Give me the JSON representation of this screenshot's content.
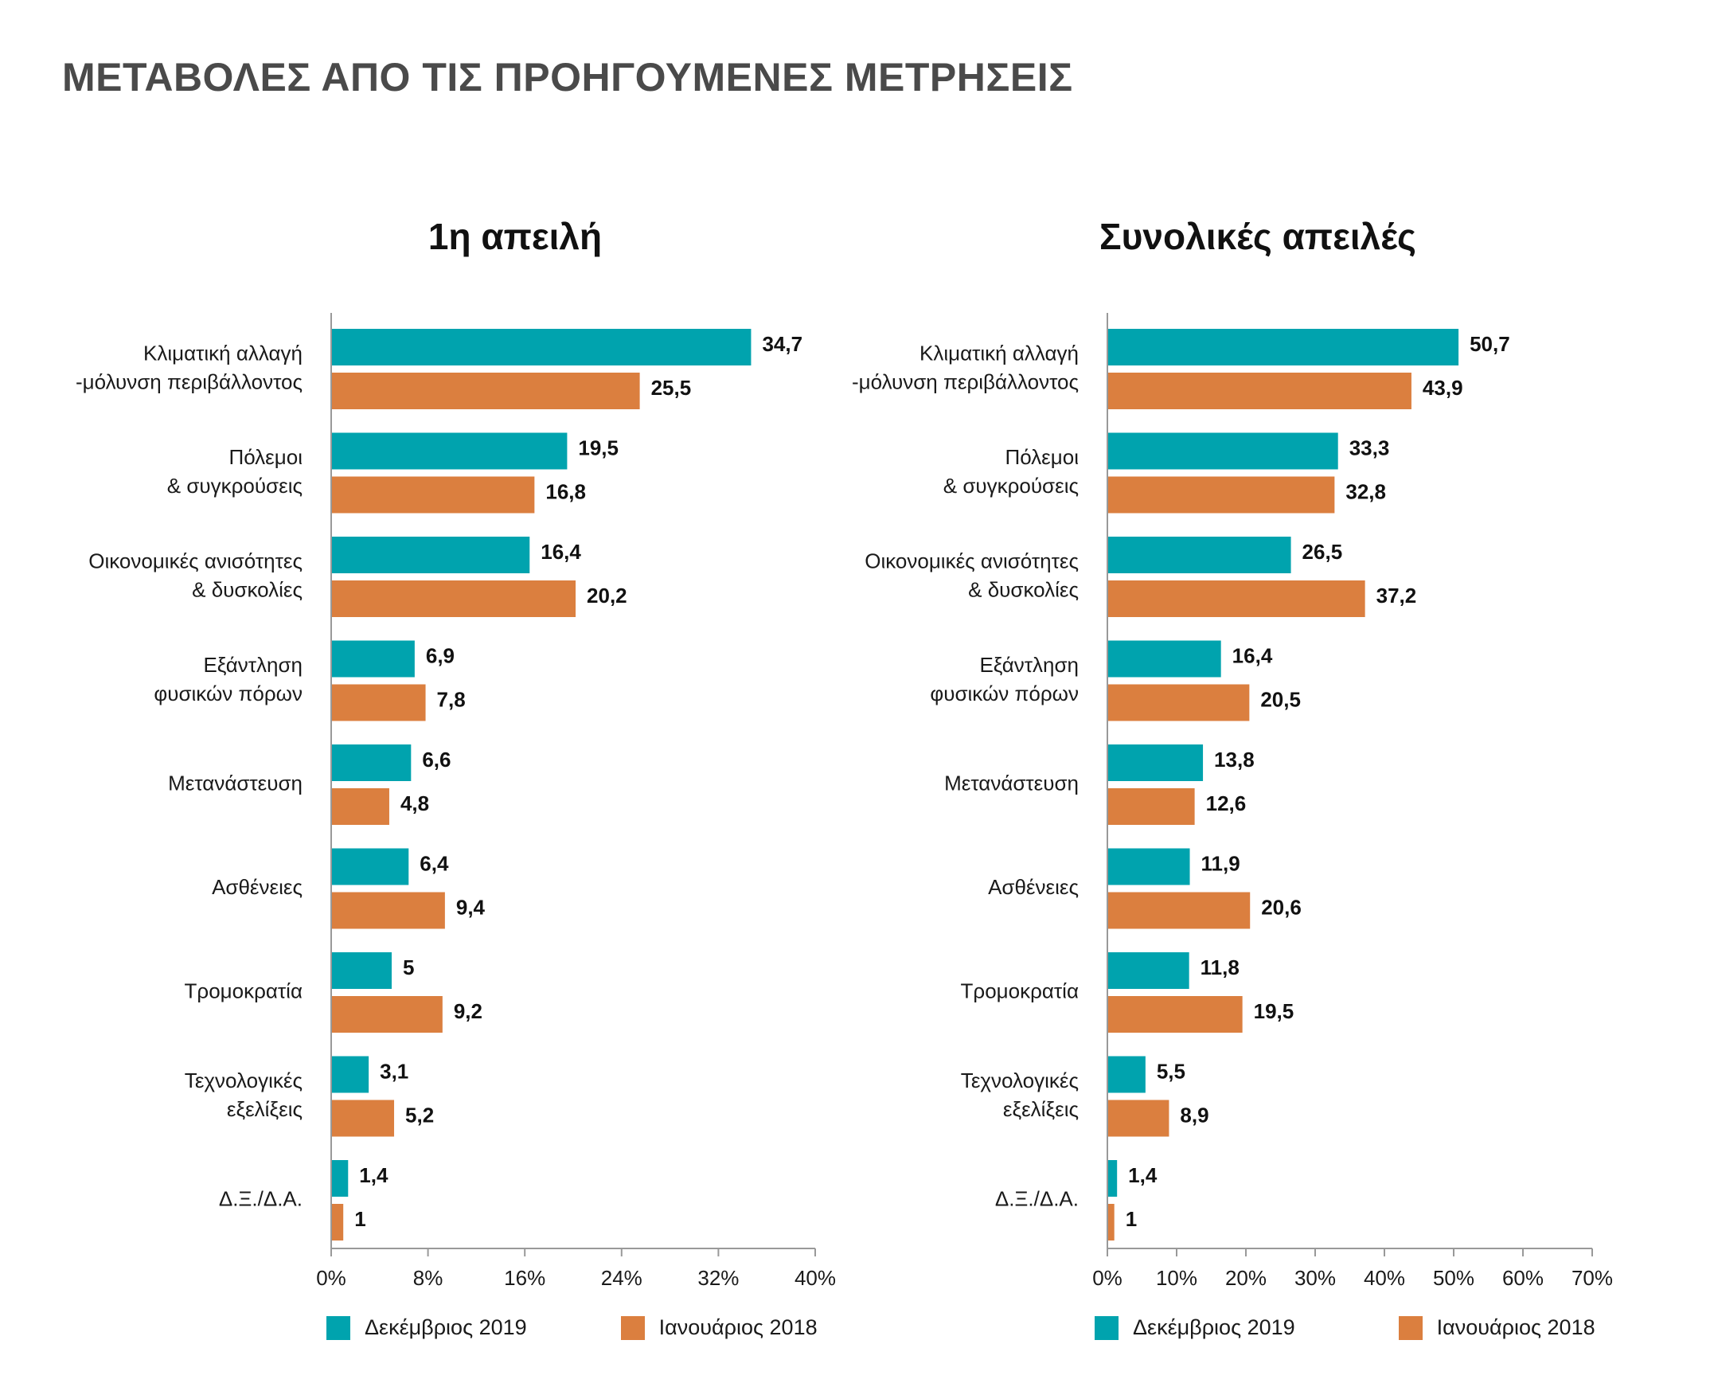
{
  "page": {
    "title": "ΜΕΤΑΒΟΛΕΣ ΑΠΟ ΤΙΣ ΠΡΟΗΓΟΥΜΕΝΕΣ ΜΕΤΡΗΣΕΙΣ"
  },
  "colors": {
    "series1": "#00a3ae",
    "series2": "#db7f3f"
  },
  "chart_data": [
    {
      "type": "bar",
      "orientation": "horizontal",
      "title": "1η απειλή",
      "categories": [
        [
          "Κλιματική αλλαγή",
          "-μόλυνση περιβάλλοντος"
        ],
        [
          "Πόλεμοι",
          "& συγκρούσεις"
        ],
        [
          "Οικονομικές ανισότητες",
          "& δυσκολίες"
        ],
        [
          "Εξάντληση",
          "φυσικών πόρων"
        ],
        [
          "Μετανάστευση"
        ],
        [
          "Ασθένειες"
        ],
        [
          "Τρομοκρατία"
        ],
        [
          "Τεχνολογικές",
          "εξελίξεις"
        ],
        [
          "Δ.Ξ./Δ.Α."
        ]
      ],
      "series": [
        {
          "name": "Δεκέμβριος 2019",
          "values": [
            34.7,
            19.5,
            16.4,
            6.9,
            6.6,
            6.4,
            5,
            3.1,
            1.4
          ],
          "labels": [
            "34,7",
            "19,5",
            "16,4",
            "6,9",
            "6,6",
            "6,4",
            "5",
            "3,1",
            "1,4"
          ]
        },
        {
          "name": "Ιανουάριος 2018",
          "values": [
            25.5,
            16.8,
            20.2,
            7.8,
            4.8,
            9.4,
            9.2,
            5.2,
            1
          ],
          "labels": [
            "25,5",
            "16,8",
            "20,2",
            "7,8",
            "4,8",
            "9,4",
            "9,2",
            "5,2",
            "1"
          ]
        }
      ],
      "xlim": [
        0,
        40
      ],
      "ticks": [
        "0%",
        "8%",
        "16%",
        "24%",
        "32%",
        "40%"
      ],
      "tick_values": [
        0,
        8,
        16,
        24,
        32,
        40
      ],
      "grid": false,
      "legend_position": "bottom"
    },
    {
      "type": "bar",
      "orientation": "horizontal",
      "title": "Συνολικές απειλές",
      "categories": [
        [
          "Κλιματική αλλαγή",
          "-μόλυνση περιβάλλοντος"
        ],
        [
          "Πόλεμοι",
          "& συγκρούσεις"
        ],
        [
          "Οικονομικές ανισότητες",
          "& δυσκολίες"
        ],
        [
          "Εξάντληση",
          "φυσικών πόρων"
        ],
        [
          "Μετανάστευση"
        ],
        [
          "Ασθένειες"
        ],
        [
          "Τρομοκρατία"
        ],
        [
          "Τεχνολογικές",
          "εξελίξεις"
        ],
        [
          "Δ.Ξ./Δ.Α."
        ]
      ],
      "series": [
        {
          "name": "Δεκέμβριος 2019",
          "values": [
            50.7,
            33.3,
            26.5,
            16.4,
            13.8,
            11.9,
            11.8,
            5.5,
            1.4
          ],
          "labels": [
            "50,7",
            "33,3",
            "26,5",
            "16,4",
            "13,8",
            "11,9",
            "11,8",
            "5,5",
            "1,4"
          ]
        },
        {
          "name": "Ιανουάριος 2018",
          "values": [
            43.9,
            32.8,
            37.2,
            20.5,
            12.6,
            20.6,
            19.5,
            8.9,
            1
          ],
          "labels": [
            "43,9",
            "32,8",
            "37,2",
            "20,5",
            "12,6",
            "20,6",
            "19,5",
            "8,9",
            "1"
          ]
        }
      ],
      "xlim": [
        0,
        70
      ],
      "ticks": [
        "0%",
        "10%",
        "20%",
        "30%",
        "40%",
        "50%",
        "60%",
        "70%"
      ],
      "tick_values": [
        0,
        10,
        20,
        30,
        40,
        50,
        60,
        70
      ],
      "grid": false,
      "legend_position": "bottom"
    }
  ]
}
